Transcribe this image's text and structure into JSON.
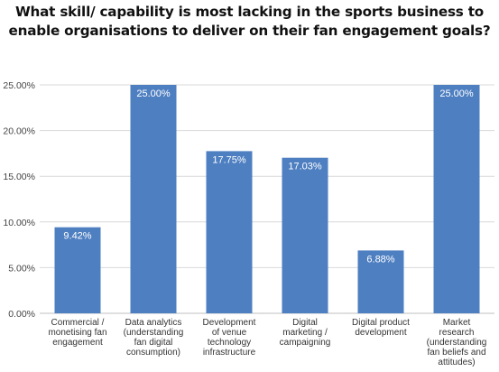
{
  "title_lines": [
    "What skill/ capability is most lacking in the sports business to",
    "enable organisations to deliver on their fan engagement goals?"
  ],
  "chart_data": {
    "type": "bar",
    "title": "What skill/ capability is most lacking in the sports business to enable organisations to deliver on their fan engagement goals?",
    "categories": [
      [
        "Commercial /",
        "monetising fan",
        "engagement"
      ],
      [
        "Data analytics",
        "(understanding",
        "fan digital",
        "consumption)"
      ],
      [
        "Development",
        "of venue",
        "technology",
        "infrastructure"
      ],
      [
        "Digital",
        "marketing /",
        "campaigning"
      ],
      [
        "Digital product",
        "development"
      ],
      [
        "Market",
        "research",
        "(understanding",
        "fan beliefs and",
        "attitudes)"
      ]
    ],
    "values": [
      9.42,
      25.0,
      17.75,
      17.03,
      6.88,
      25.0
    ],
    "data_labels": [
      "9.42%",
      "25.00%",
      "17.75%",
      "17.03%",
      "6.88%",
      "25.00%"
    ],
    "yticks": [
      0,
      5,
      10,
      15,
      20,
      25
    ],
    "ytick_labels": [
      "0.00%",
      "5.00%",
      "10.00%",
      "15.00%",
      "20.00%",
      "25.00%"
    ],
    "ylim": [
      0,
      25
    ],
    "grid": true,
    "legend": "none",
    "xlabel": "",
    "ylabel": "",
    "colors": {
      "bar": "#4e7fc1",
      "grid": "#d9d9d9",
      "axis": "#bfbfbf"
    }
  }
}
